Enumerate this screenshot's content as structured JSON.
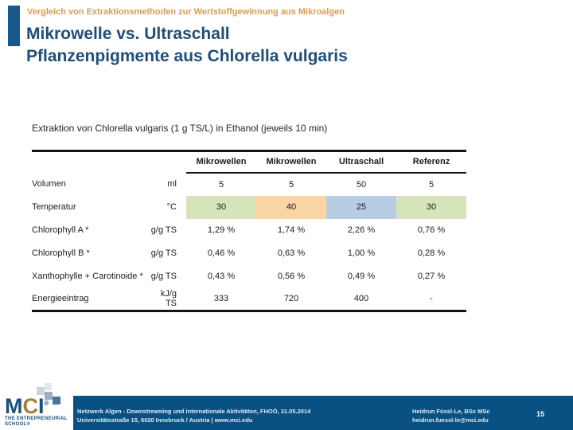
{
  "header": {
    "kicker": "Vergleich von Extraktionsmethoden zur Wertstoffgewinnung aus Mikroalgen",
    "title_line1": "Mikrowelle vs. Ultraschall",
    "title_line2": "Pflanzenpigmente aus Chlorella vulgaris"
  },
  "table": {
    "caption": "Extraktion von Chlorella vulgaris (1 g TS/L) in Ethanol (jeweils 10 min)",
    "columns": [
      "Mikrowellen",
      "Mikrowellen",
      "Ultraschall",
      "Referenz"
    ],
    "rows": [
      {
        "label": "Volumen",
        "unit": "ml",
        "values": [
          "5",
          "5",
          "50",
          "5"
        ]
      },
      {
        "label": "Temperatur",
        "unit": "°C",
        "values": [
          "30",
          "40",
          "25",
          "30"
        ],
        "highlight": [
          "green",
          "orange",
          "blue",
          "green"
        ]
      },
      {
        "label": "Chlorophyll A *",
        "unit": "g/g TS",
        "values": [
          "1,29 %",
          "1,74 %",
          "2,26 %",
          "0,76 %"
        ]
      },
      {
        "label": "Chlorophyll B *",
        "unit": "g/g TS",
        "values": [
          "0,46 %",
          "0,63 %",
          "1,00 %",
          "0,28 %"
        ]
      },
      {
        "label": "Xanthophylle + Carotinoide *",
        "unit": "g/g TS",
        "values": [
          "0,43 %",
          "0,56 %",
          "0,49 %",
          "0,27 %"
        ]
      },
      {
        "label": "Energieeintrag",
        "unit": "kJ/g TS",
        "values": [
          "333",
          "720",
          "400",
          "-"
        ]
      }
    ],
    "highlight_colors": {
      "green": "#d6e4bc",
      "orange": "#fcd5a4",
      "blue": "#b8cce4"
    }
  },
  "footer": {
    "logo": {
      "brand_m": "M",
      "brand_c": "C",
      "brand_i": "I",
      "registered": "®",
      "tagline_line1": "THE ENTREPRENEURIAL",
      "tagline_line2": "SCHOOL®"
    },
    "event_line1": "Netzwerk Algen - Downstreaming und internationale Aktivitäten, FHOÖ, 31.05.2014",
    "event_line2": "Universitätsstraße 15, 6020 Innsbruck / Austria | www.mci.edu",
    "author_line1": "Heidrun Füssl-Le, BSc MSc",
    "author_line2": "heidrun.fuessl-le@mci.edu",
    "page_number": "15"
  },
  "colors": {
    "accent_bar": "#1a578a",
    "kicker_orange": "#dc9b51",
    "title_blue": "#1f4e79",
    "footer_blue": "#0a5183",
    "logo_blue": "#17507f",
    "logo_mosaic_brown": "#a97c3c"
  }
}
